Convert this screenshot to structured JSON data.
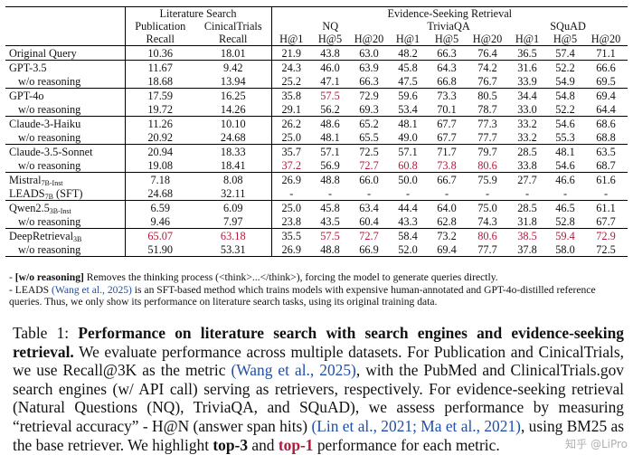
{
  "table": {
    "group_headers": {
      "lit": "Literature Search",
      "ev": "Evidence-Seeking Retrieval"
    },
    "sub_headers": {
      "pub": "Publication",
      "ct": "CinicalTrials",
      "nq": "NQ",
      "tqa": "TriviaQA",
      "squad": "SQuAD"
    },
    "metric_headers": [
      "Recall",
      "Recall",
      "H@1",
      "H@5",
      "H@20",
      "H@1",
      "H@5",
      "H@20",
      "H@1",
      "H@5",
      "H@20"
    ],
    "rows": [
      {
        "model": "Original Query",
        "cells": [
          "10.36",
          "18.01",
          "21.9",
          "43.8",
          "63.0",
          "48.2",
          "66.3",
          "76.4",
          "36.5",
          "57.4",
          "71.1"
        ]
      },
      {
        "model": "GPT-3.5",
        "cells": [
          "11.67",
          "9.42",
          "24.3",
          "46.0",
          "63.9",
          "45.8",
          "64.3",
          "74.2",
          "31.6",
          "52.2",
          "66.6"
        ]
      },
      {
        "model": "w/o reasoning",
        "cells": [
          "18.68",
          "13.94",
          "25.2",
          "47.1",
          "66.3",
          "47.5",
          "66.8",
          "76.7",
          "33.9",
          "54.9",
          "69.5"
        ]
      },
      {
        "model": "GPT-4o",
        "cells": [
          "17.59",
          "16.25",
          "35.8",
          "57.5",
          "72.9",
          "59.6",
          "73.3",
          "80.5",
          "34.4",
          "54.8",
          "69.4"
        ]
      },
      {
        "model": "w/o reasoning",
        "cells": [
          "19.72",
          "14.26",
          "29.1",
          "56.2",
          "69.3",
          "53.4",
          "70.1",
          "78.7",
          "33.0",
          "52.2",
          "64.4"
        ]
      },
      {
        "model": "Claude-3-Haiku",
        "cells": [
          "11.26",
          "10.10",
          "26.2",
          "48.6",
          "65.2",
          "48.1",
          "67.7",
          "77.3",
          "33.2",
          "54.6",
          "68.6"
        ]
      },
      {
        "model": "w/o reasoning",
        "cells": [
          "20.92",
          "24.68",
          "25.0",
          "48.1",
          "65.5",
          "49.0",
          "67.7",
          "77.7",
          "33.2",
          "55.3",
          "68.8"
        ]
      },
      {
        "model": "Claude-3.5-Sonnet",
        "cells": [
          "20.94",
          "18.33",
          "35.7",
          "57.1",
          "72.5",
          "57.1",
          "71.7",
          "79.7",
          "28.5",
          "48.1",
          "63.5"
        ]
      },
      {
        "model": "w/o reasoning",
        "cells": [
          "19.08",
          "18.41",
          "37.2",
          "56.9",
          "72.7",
          "60.8",
          "73.8",
          "80.6",
          "33.8",
          "54.6",
          "68.7"
        ]
      },
      {
        "model": "Mistral",
        "model_sub": "7B-Inst",
        "cells": [
          "7.18",
          "8.08",
          "26.9",
          "48.8",
          "66.0",
          "50.0",
          "66.7",
          "75.9",
          "27.7",
          "46.6",
          "61.6"
        ]
      },
      {
        "model": "LEADS",
        "model_sub": "7B",
        "model_suffix": " (SFT)",
        "cells": [
          "24.68",
          "32.11",
          "-",
          "-",
          "-",
          "-",
          "-",
          "-",
          "-",
          "-",
          "-"
        ]
      },
      {
        "model": "Qwen2.5",
        "model_sub": "3B-Inst",
        "cells": [
          "6.59",
          "6.09",
          "25.0",
          "45.8",
          "63.4",
          "44.4",
          "64.0",
          "75.0",
          "28.5",
          "46.5",
          "61.1"
        ]
      },
      {
        "model": "w/o reasoning",
        "cells": [
          "9.46",
          "7.97",
          "23.8",
          "43.5",
          "60.4",
          "43.3",
          "62.8",
          "74.3",
          "31.8",
          "52.8",
          "67.7"
        ]
      },
      {
        "model": "DeepRetrieval",
        "model_sub": "3B",
        "cells": [
          "65.07",
          "63.18",
          "35.5",
          "57.5",
          "72.7",
          "58.4",
          "73.2",
          "80.6",
          "38.5",
          "59.4",
          "72.9"
        ]
      },
      {
        "model": "w/o reasoning",
        "cells": [
          "51.90",
          "53.31",
          "26.9",
          "48.8",
          "66.9",
          "52.0",
          "69.4",
          "77.7",
          "37.8",
          "58.0",
          "72.5"
        ]
      }
    ],
    "cell_styles": [
      [
        "",
        "",
        "",
        "",
        "",
        "",
        "",
        "",
        "b",
        "b",
        "b"
      ],
      [
        "",
        "",
        "",
        "",
        "",
        "",
        "",
        "",
        "",
        "",
        ""
      ],
      [
        "",
        "",
        "",
        "",
        "",
        "",
        "",
        "",
        "",
        "",
        ""
      ],
      [
        "",
        "",
        "b",
        "red",
        "b",
        "b",
        "b",
        "b",
        "",
        "",
        ""
      ],
      [
        "",
        "",
        "",
        "",
        "",
        "",
        "",
        "",
        "",
        "",
        ""
      ],
      [
        "",
        "",
        "",
        "",
        "",
        "",
        "",
        "",
        "",
        "",
        ""
      ],
      [
        "",
        "",
        "",
        "",
        "",
        "",
        "",
        "",
        "",
        "",
        ""
      ],
      [
        "",
        "",
        "",
        "b",
        "b",
        "",
        "",
        "",
        "",
        "",
        ""
      ],
      [
        "b",
        "",
        "red",
        "",
        "red",
        "red",
        "red",
        "red",
        "",
        "",
        ""
      ],
      [
        "",
        "",
        "",
        "",
        "",
        "",
        "",
        "",
        "",
        "",
        ""
      ],
      [
        "b",
        "b",
        "",
        "",
        "",
        "",
        "",
        "",
        "",
        "",
        ""
      ],
      [
        "",
        "",
        "",
        "",
        "",
        "",
        "",
        "",
        "",
        "",
        ""
      ],
      [
        "",
        "",
        "",
        "",
        "",
        "",
        "",
        "",
        "",
        "",
        ""
      ],
      [
        "red",
        "red",
        "b",
        "red",
        "red",
        "b",
        "b",
        "red",
        "red",
        "red",
        "red"
      ],
      [
        "b",
        "b",
        "",
        "",
        "",
        "",
        "",
        "",
        "b",
        "b",
        "b"
      ]
    ]
  },
  "notes": {
    "n1_lead": "- ",
    "n1_bold": "[w/o reasoning]",
    "n1_text": " Removes the thinking process (<think>...</think>), forcing the model to generate queries directly.",
    "n2_lead": "- LEADS ",
    "n2_cite": "(Wang et al., 2025)",
    "n2_text": " is an SFT-based method which trains models with expensive human-annotated and GPT-4o-distilled reference queries. Thus, we only show its performance on literature search tasks, using its original training data."
  },
  "caption": {
    "label": "Table 1: ",
    "bold_title": "Performance on literature search with search engines and evidence-seeking retrieval.",
    "t1": " We evaluate performance across multiple datasets. For Publication and CinicalTrials, we use Recall@3K as the metric ",
    "cite1": "(Wang et al., 2025)",
    "t2": ", with the PubMed and ClinicalTrials.gov search engines (w/ API call) serving as retrievers, respectively. For evidence-seeking retrieval (Natural Questions (NQ), TriviaQA, and SQuAD), we assess performance by measuring “retrieval accuracy” - H@N (answer span hits) ",
    "cite2": "(Lin et al., 2021; Ma et al., 2021)",
    "t3": ", using BM25 as the base retriever. We highlight ",
    "top3": "top-3",
    "t4": " and ",
    "top1": "top-1",
    "t5": " performance for each metric."
  },
  "watermark": "知乎 @LiPro",
  "colors": {
    "highlight_red": "#b5183a",
    "citation_blue": "#1f4fa8"
  }
}
